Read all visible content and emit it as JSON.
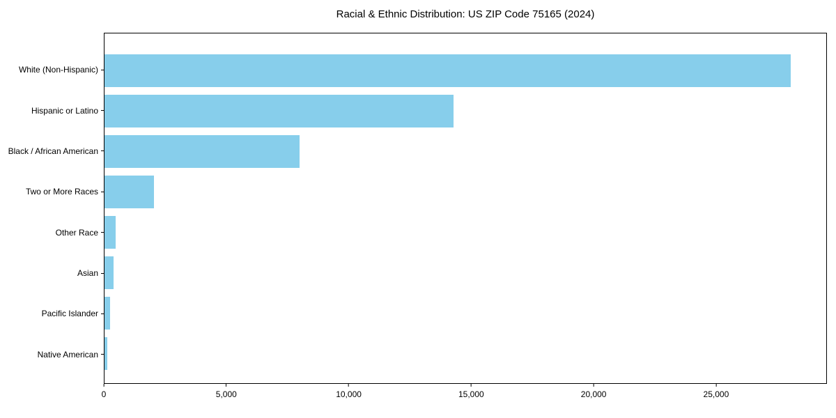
{
  "chart_data": {
    "type": "bar",
    "orientation": "horizontal",
    "title": "Racial & Ethnic Distribution: US ZIP Code 75165 (2024)",
    "categories": [
      "White (Non-Hispanic)",
      "Hispanic or Latino",
      "Black / African American",
      "Two or More Races",
      "Other Race",
      "Asian",
      "Pacific Islander",
      "Native American"
    ],
    "values": [
      28070,
      14290,
      7985,
      2015,
      455,
      380,
      240,
      115
    ],
    "bar_color": "#87CEEB",
    "axis_color": "#000000",
    "background_color": "#FFFFFF",
    "xlabel": "",
    "ylabel": "",
    "xlim": [
      0,
      29525
    ],
    "xticks": [
      0,
      5000,
      10000,
      15000,
      20000,
      25000
    ],
    "xtick_labels": [
      "0",
      "5,000",
      "10,000",
      "15,000",
      "20,000",
      "25,000"
    ],
    "grid": false,
    "legend": null
  }
}
